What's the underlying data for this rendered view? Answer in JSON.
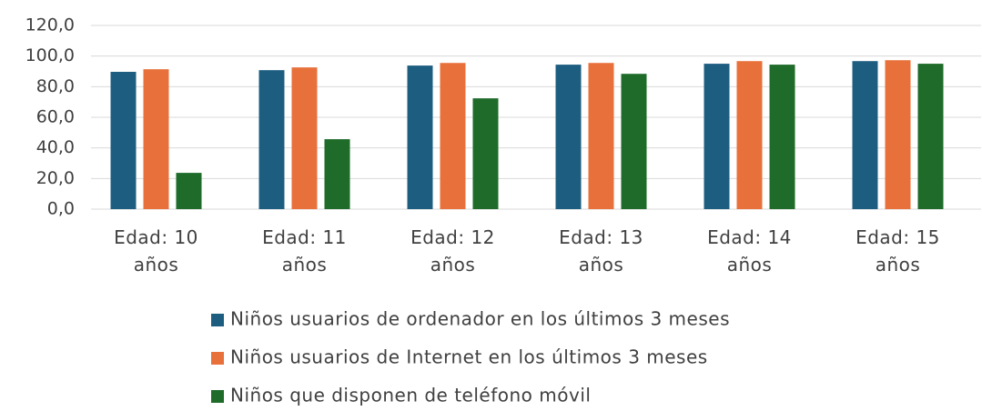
{
  "chart_data": {
    "type": "bar",
    "categories": [
      "Edad: 10 años",
      "Edad: 11 años",
      "Edad: 12 años",
      "Edad: 13 años",
      "Edad: 14 años",
      "Edad: 15 años"
    ],
    "series": [
      {
        "name": "Niños usuarios de ordenador en los últimos 3 meses",
        "color": "#1d5e80",
        "values": [
          89.7,
          90.8,
          93.8,
          94.4,
          95.0,
          96.7
        ]
      },
      {
        "name": "Niños usuarios de Internet en los últimos 3 meses",
        "color": "#e8703a",
        "values": [
          91.4,
          92.6,
          95.5,
          95.5,
          96.7,
          97.3
        ]
      },
      {
        "name": "Niños que disponen de teléfono móvil",
        "color": "#1e6b2a",
        "values": [
          23.7,
          45.7,
          72.4,
          88.4,
          94.4,
          95.0
        ]
      }
    ],
    "ylim": [
      0,
      120
    ],
    "yticks": [
      {
        "value": 0,
        "label": "0,0"
      },
      {
        "value": 20,
        "label": "20,0"
      },
      {
        "value": 40,
        "label": "40,0"
      },
      {
        "value": 60,
        "label": "60,0"
      },
      {
        "value": 80,
        "label": "80,0"
      },
      {
        "value": 100,
        "label": "100,0"
      },
      {
        "value": 120,
        "label": "120,0"
      }
    ],
    "grid": true
  }
}
